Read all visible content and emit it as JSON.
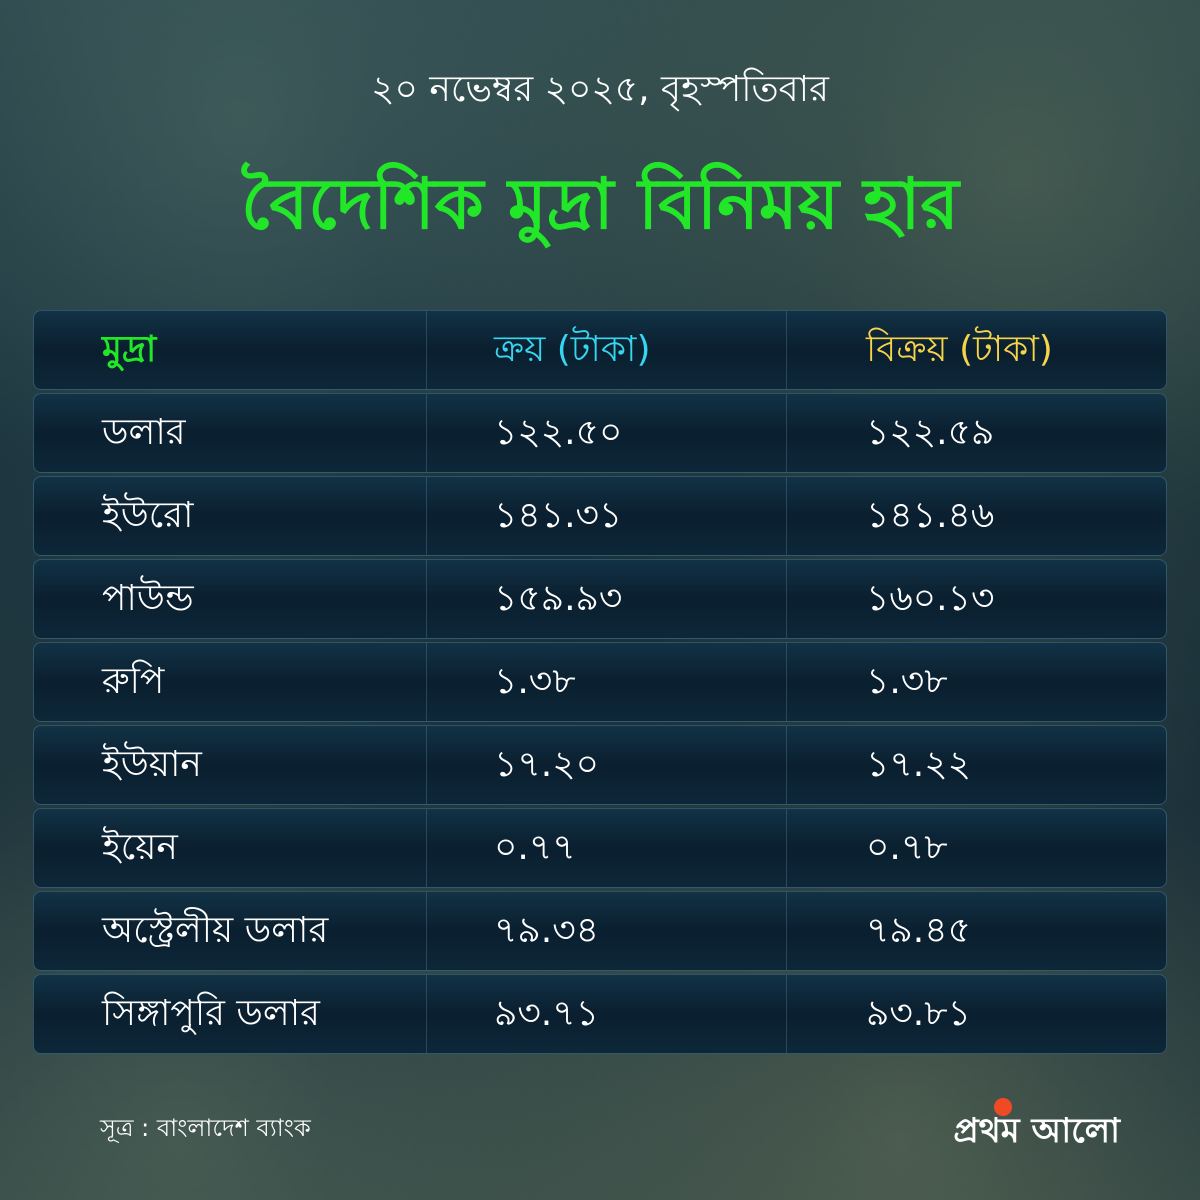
{
  "date": "২০ নভেম্বর ২০২৫, বৃহস্পতিবার",
  "title": "বৈদেশিক মুদ্রা বিনিময় হার",
  "table": {
    "headers": {
      "currency": "মুদ্রা",
      "buy": "ক্রয় (টাকা)",
      "sell": "বিক্রয় (টাকা)"
    },
    "rows": [
      {
        "currency": "ডলার",
        "buy": "১২২.৫০",
        "sell": "১২২.৫৯"
      },
      {
        "currency": "ইউরো",
        "buy": "১৪১.৩১",
        "sell": "১৪১.৪৬"
      },
      {
        "currency": "পাউন্ড",
        "buy": "১৫৯.৯৩",
        "sell": "১৬০.১৩"
      },
      {
        "currency": "রুপি",
        "buy": "১.৩৮",
        "sell": "১.৩৮"
      },
      {
        "currency": "ইউয়ান",
        "buy": "১৭.২০",
        "sell": "১৭.২২"
      },
      {
        "currency": "ইয়েন",
        "buy": "০.৭৭",
        "sell": "০.৭৮"
      },
      {
        "currency": "অস্ট্রেলীয় ডলার",
        "buy": "৭৯.৩৪",
        "sell": "৭৯.৪৫"
      },
      {
        "currency": "সিঙ্গাপুরি ডলার",
        "buy": "৯৩.৭১",
        "sell": "৯৩.৮১"
      }
    ]
  },
  "source": "সূত্র : বাংলাদেশ ব্যাংক",
  "logo": "প্রথম আলো",
  "colors": {
    "title": "#22e628",
    "buy_header": "#37d6f0",
    "sell_header": "#f7d34a",
    "logo_sun": "#f04a24"
  }
}
